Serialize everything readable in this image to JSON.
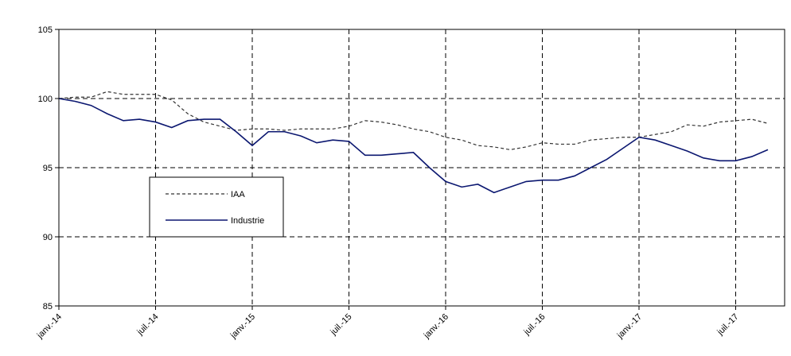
{
  "chart_data": {
    "type": "line",
    "title": "",
    "xlabel": "",
    "ylabel": "",
    "ylim": [
      85,
      105
    ],
    "yticks": [
      85,
      90,
      95,
      100,
      105
    ],
    "xtick_labels": [
      "janv.-14",
      "juil.-14",
      "janv.-15",
      "juil.-15",
      "janv.-16",
      "juil.-16",
      "janv.-17",
      "juil.-17"
    ],
    "grid": "dashed",
    "legend": {
      "placement": "inside-left",
      "entries": [
        "IAA",
        "Industrie"
      ]
    },
    "x": [
      "2014-01",
      "2014-02",
      "2014-03",
      "2014-04",
      "2014-05",
      "2014-06",
      "2014-07",
      "2014-08",
      "2014-09",
      "2014-10",
      "2014-11",
      "2014-12",
      "2015-01",
      "2015-02",
      "2015-03",
      "2015-04",
      "2015-05",
      "2015-06",
      "2015-07",
      "2015-08",
      "2015-09",
      "2015-10",
      "2015-11",
      "2015-12",
      "2016-01",
      "2016-02",
      "2016-03",
      "2016-04",
      "2016-05",
      "2016-06",
      "2016-07",
      "2016-08",
      "2016-09",
      "2016-10",
      "2016-11",
      "2016-12",
      "2017-01",
      "2017-02",
      "2017-03",
      "2017-04",
      "2017-05",
      "2017-06",
      "2017-07",
      "2017-08",
      "2017-09",
      "2017-10"
    ],
    "series": [
      {
        "name": "IAA",
        "color": "#333333",
        "dash": "dashed",
        "values": [
          100.0,
          100.1,
          100.1,
          100.5,
          100.3,
          100.3,
          100.3,
          99.9,
          98.9,
          98.3,
          98.0,
          97.7,
          97.8,
          97.8,
          97.7,
          97.8,
          97.8,
          97.8,
          98.0,
          98.4,
          98.3,
          98.1,
          97.8,
          97.6,
          97.2,
          97.0,
          96.6,
          96.5,
          96.3,
          96.5,
          96.8,
          96.7,
          96.7,
          97.0,
          97.1,
          97.2,
          97.2,
          97.4,
          97.6,
          98.1,
          98.0,
          98.3,
          98.4,
          98.5,
          98.2,
          null
        ]
      },
      {
        "name": "Industrie",
        "color": "#0b1770",
        "dash": "solid",
        "values": [
          100.0,
          99.8,
          99.5,
          98.9,
          98.4,
          98.5,
          98.3,
          97.9,
          98.4,
          98.5,
          98.5,
          97.6,
          96.6,
          97.6,
          97.6,
          97.3,
          96.8,
          97.0,
          96.9,
          95.9,
          95.9,
          96.0,
          96.1,
          95.0,
          94.0,
          93.6,
          93.8,
          93.2,
          93.6,
          94.0,
          94.1,
          94.1,
          94.4,
          95.0,
          95.6,
          96.4,
          97.2,
          97.0,
          96.6,
          96.2,
          95.7,
          95.5,
          95.5,
          95.8,
          96.3,
          null
        ]
      }
    ]
  }
}
